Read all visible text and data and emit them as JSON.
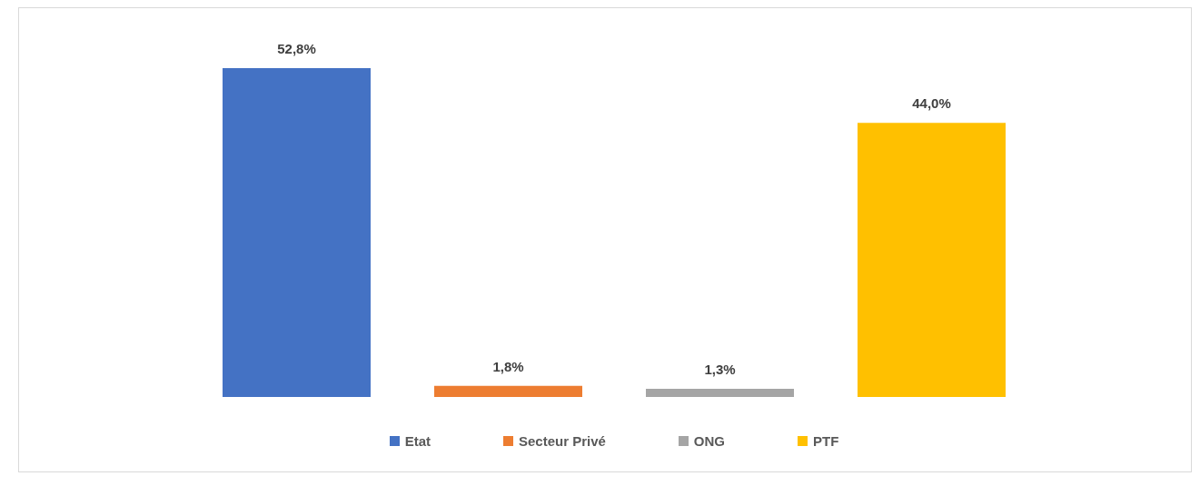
{
  "chart_data": {
    "type": "bar",
    "categories": [
      null,
      null,
      null,
      null
    ],
    "stacked": true,
    "series": [
      {
        "name": "Etat",
        "color": "#4472c4",
        "values": [
          52.8,
          null,
          null,
          null
        ],
        "value_labels": [
          "52,8%",
          null,
          null,
          null
        ]
      },
      {
        "name": "Secteur Privé",
        "color": "#ed7d31",
        "values": [
          null,
          1.8,
          null,
          null
        ],
        "value_labels": [
          null,
          "1,8%",
          null,
          null
        ]
      },
      {
        "name": "ONG",
        "color": "#a5a5a5",
        "values": [
          null,
          null,
          1.3,
          null
        ],
        "value_labels": [
          null,
          null,
          "1,3%",
          null
        ]
      },
      {
        "name": "PTF",
        "color": "#ffc000",
        "values": [
          null,
          null,
          null,
          44.0
        ],
        "value_labels": [
          null,
          null,
          null,
          "44,0%"
        ]
      }
    ],
    "legend": "bottom",
    "grid": false
  }
}
